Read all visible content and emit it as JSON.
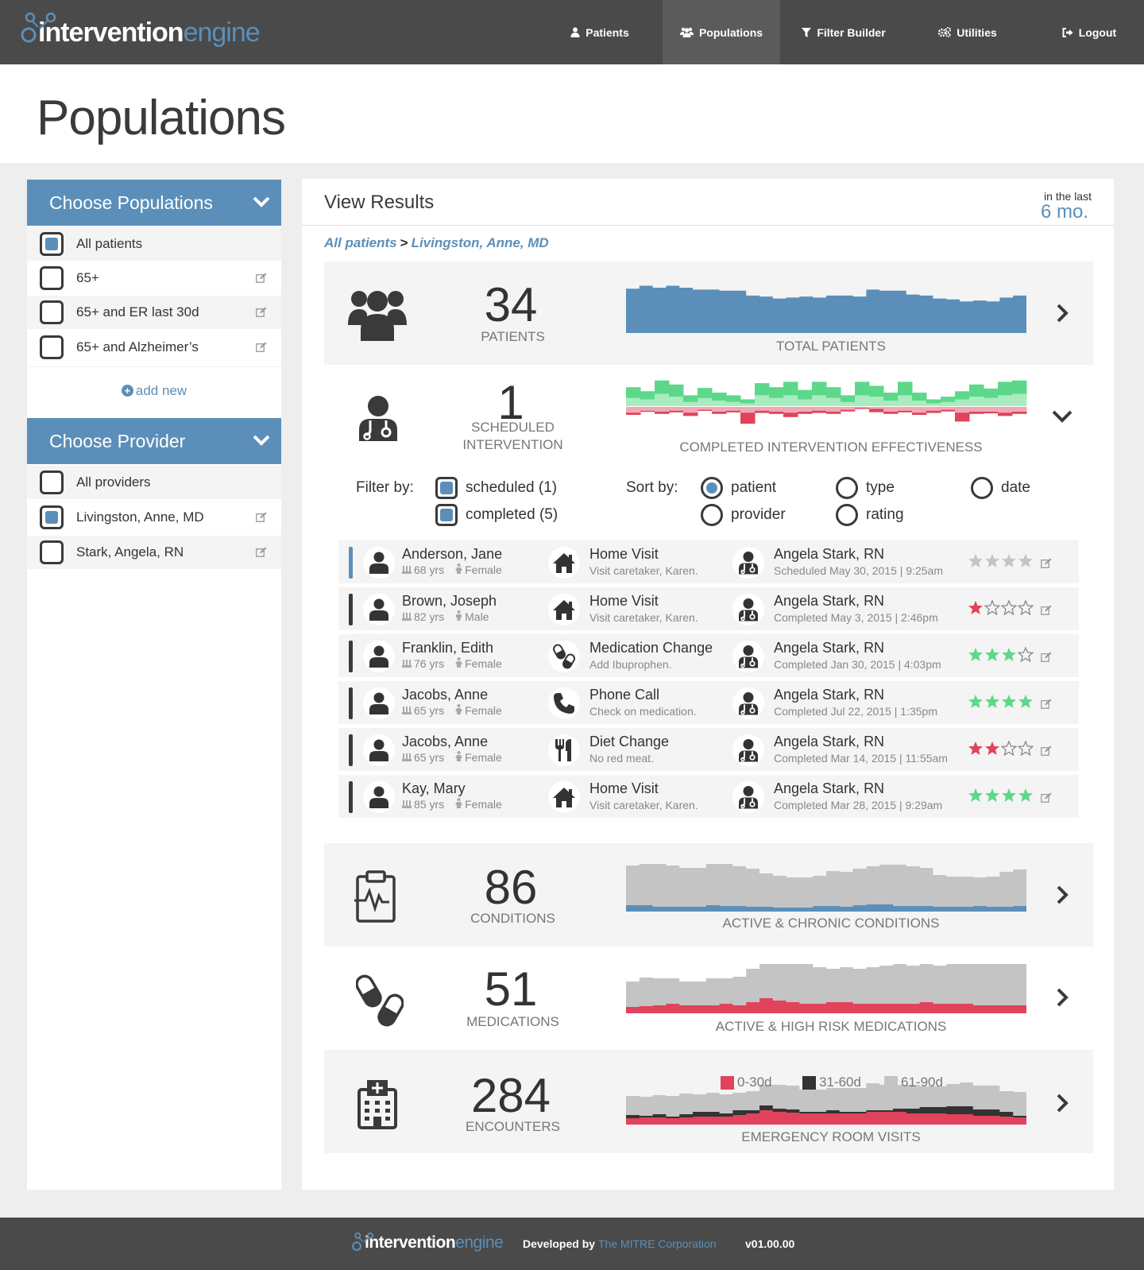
{
  "app": {
    "brand_primary": "intervention",
    "brand_secondary": "engine"
  },
  "colors": {
    "accent": "#5b8fb9",
    "nav_bg": "#4a4a4a",
    "positive": "#5dd88a",
    "positive_light": "#a8ecbf",
    "negative": "#e0435b",
    "negative_light": "#f0a9b4",
    "muted": "#c4c4c4",
    "dark_series": "#333333"
  },
  "nav": {
    "items": [
      {
        "label": "Patients",
        "icon": "user-icon"
      },
      {
        "label": "Populations",
        "icon": "users-icon",
        "active": true
      },
      {
        "label": "Filter Builder",
        "icon": "filter-icon"
      },
      {
        "label": "Utilities",
        "icon": "cogs-icon"
      },
      {
        "label": "Logout",
        "icon": "logout-icon"
      }
    ]
  },
  "page": {
    "title": "Populations"
  },
  "sidebar": {
    "populations": {
      "title": "Choose Populations",
      "items": [
        {
          "label": "All patients",
          "checked": true,
          "editable": false
        },
        {
          "label": "65+",
          "checked": false,
          "editable": true
        },
        {
          "label": "65+ and ER last 30d",
          "checked": false,
          "editable": true
        },
        {
          "label": "65+ and Alzheimer’s",
          "checked": false,
          "editable": true
        }
      ],
      "add_label": "add new"
    },
    "providers": {
      "title": "Choose Provider",
      "items": [
        {
          "label": "All providers",
          "checked": false,
          "editable": false
        },
        {
          "label": "Livingston, Anne, MD",
          "checked": true,
          "editable": true
        },
        {
          "label": "Stark, Angela, RN",
          "checked": false,
          "editable": true
        }
      ]
    }
  },
  "results": {
    "title": "View Results",
    "time_prefix": "in the last",
    "time_value": "6 mo.",
    "breadcrumb": [
      "All patients",
      "Livingston, Anne, MD"
    ],
    "breadcrumb_sep": ">"
  },
  "cards": {
    "patients": {
      "count": "34",
      "label": "PATIENTS",
      "chart_label": "TOTAL PATIENTS"
    },
    "interventions": {
      "count": "1",
      "label_line1": "SCHEDULED",
      "label_line2": "INTERVENTION",
      "chart_label": "COMPLETED INTERVENTION EFFECTIVENESS"
    },
    "conditions": {
      "count": "86",
      "label": "CONDITIONS",
      "chart_label": "ACTIVE & CHRONIC CONDITIONS"
    },
    "medications": {
      "count": "51",
      "label": "MEDICATIONS",
      "chart_label": "ACTIVE & HIGH RISK MEDICATIONS"
    },
    "encounters": {
      "count": "284",
      "label": "ENCOUNTERS",
      "chart_label": "EMERGENCY ROOM VISITS",
      "legend": [
        "0-30d",
        "31-60d",
        "61-90d"
      ]
    }
  },
  "filter": {
    "label": "Filter by:",
    "options": [
      {
        "label": "scheduled (1)",
        "checked": true
      },
      {
        "label": "completed (5)",
        "checked": true
      }
    ]
  },
  "sort": {
    "label": "Sort by:",
    "options": [
      {
        "label": "patient",
        "selected": true
      },
      {
        "label": "type",
        "selected": false
      },
      {
        "label": "date",
        "selected": false
      },
      {
        "label": "provider",
        "selected": false
      },
      {
        "label": "rating",
        "selected": false
      }
    ]
  },
  "interventions": [
    {
      "patient": "Anderson, Jane",
      "age": "68 yrs",
      "gender": "Female",
      "type": "Home Visit",
      "type_icon": "home-icon",
      "note": "Visit caretaker, Karen.",
      "provider": "Angela Stark, RN",
      "status": "Scheduled May 30, 2015 | 9:25am",
      "rating": 0,
      "rating_color": "#c4c4c4",
      "scheduled": true
    },
    {
      "patient": "Brown, Joseph",
      "age": "82 yrs",
      "gender": "Male",
      "type": "Home Visit",
      "type_icon": "home-icon",
      "note": "Visit caretaker, Karen.",
      "provider": "Angela Stark, RN",
      "status": "Completed May 3, 2015 | 2:46pm",
      "rating": 1,
      "rating_color": "#e0435b",
      "scheduled": false
    },
    {
      "patient": "Franklin, Edith",
      "age": "76 yrs",
      "gender": "Female",
      "type": "Medication Change",
      "type_icon": "pills-icon",
      "note": "Add Ibuprophen.",
      "provider": "Angela Stark, RN",
      "status": "Completed Jan 30, 2015 | 4:03pm",
      "rating": 3,
      "rating_color": "#5dd88a",
      "scheduled": false
    },
    {
      "patient": "Jacobs, Anne",
      "age": "65 yrs",
      "gender": "Female",
      "type": "Phone Call",
      "type_icon": "phone-icon",
      "note": "Check on medication.",
      "provider": "Angela Stark, RN",
      "status": "Completed Jul 22, 2015 | 1:35pm",
      "rating": 4,
      "rating_color": "#5dd88a",
      "scheduled": false
    },
    {
      "patient": "Jacobs, Anne",
      "age": "65 yrs",
      "gender": "Female",
      "type": "Diet Change",
      "type_icon": "utensils-icon",
      "note": "No red meat.",
      "provider": "Angela Stark, RN",
      "status": "Completed Mar 14, 2015 | 11:55am",
      "rating": 2,
      "rating_color": "#e0435b",
      "scheduled": false
    },
    {
      "patient": "Kay, Mary",
      "age": "85 yrs",
      "gender": "Female",
      "type": "Home Visit",
      "type_icon": "home-icon",
      "note": "Visit caretaker, Karen.",
      "provider": "Angela Stark, RN",
      "status": "Completed Mar 28, 2015 | 9:29am",
      "rating": 4,
      "rating_color": "#5dd88a",
      "scheduled": false
    }
  ],
  "footer": {
    "dev_prefix": "Developed by",
    "company": "The MITRE Corporation",
    "version": "v01.00.00"
  },
  "chart_data": [
    {
      "type": "area",
      "name": "patients",
      "values": [
        45,
        48,
        46,
        48,
        46,
        44,
        44,
        43,
        43,
        38,
        37,
        35,
        36,
        37,
        36,
        38,
        38,
        37,
        44,
        43,
        43,
        39,
        38,
        35,
        34,
        32,
        33,
        32,
        36,
        38
      ]
    },
    {
      "type": "bar",
      "name": "effectiveness",
      "positive": [
        [
          12,
          16
        ],
        [
          10,
          12
        ],
        [
          18,
          20
        ],
        [
          14,
          18
        ],
        [
          6,
          10
        ],
        [
          12,
          15
        ],
        [
          8,
          12
        ],
        [
          6,
          10
        ],
        [
          4,
          6
        ],
        [
          16,
          18
        ],
        [
          12,
          16
        ],
        [
          16,
          20
        ],
        [
          10,
          14
        ],
        [
          16,
          20
        ],
        [
          12,
          16
        ],
        [
          6,
          10
        ],
        [
          16,
          20
        ],
        [
          14,
          16
        ],
        [
          8,
          12
        ],
        [
          16,
          20
        ],
        [
          8,
          12
        ],
        [
          4,
          6
        ],
        [
          6,
          8
        ],
        [
          10,
          12
        ],
        [
          14,
          18
        ],
        [
          12,
          14
        ],
        [
          16,
          20
        ],
        [
          18,
          20
        ]
      ],
      "negative": [
        [
          12,
          4
        ],
        [
          8,
          2
        ],
        [
          10,
          4
        ],
        [
          8,
          3
        ],
        [
          12,
          6
        ],
        [
          6,
          2
        ],
        [
          10,
          4
        ],
        [
          8,
          3
        ],
        [
          12,
          20
        ],
        [
          8,
          4
        ],
        [
          10,
          4
        ],
        [
          12,
          8
        ],
        [
          10,
          4
        ],
        [
          8,
          4
        ],
        [
          10,
          4
        ],
        [
          6,
          3
        ],
        [
          2,
          2
        ],
        [
          4,
          6
        ],
        [
          10,
          4
        ],
        [
          8,
          3
        ],
        [
          12,
          4
        ],
        [
          8,
          4
        ],
        [
          6,
          3
        ],
        [
          12,
          16
        ],
        [
          10,
          4
        ],
        [
          10,
          3
        ],
        [
          12,
          6
        ],
        [
          10,
          4
        ]
      ]
    },
    {
      "type": "area",
      "name": "conditions",
      "series": [
        {
          "name": "active",
          "values": [
            8,
            8,
            6,
            6,
            6,
            6,
            8,
            7,
            7,
            6,
            6,
            5,
            5,
            5,
            7,
            7,
            6,
            8,
            9,
            9,
            7,
            7,
            7,
            6,
            6,
            6,
            7,
            6,
            6,
            7
          ]
        },
        {
          "name": "chronic",
          "values": [
            50,
            56,
            54,
            52,
            49,
            49,
            53,
            54,
            50,
            48,
            42,
            40,
            38,
            38,
            38,
            44,
            44,
            46,
            48,
            50,
            52,
            50,
            48,
            40,
            38,
            38,
            36,
            38,
            44,
            46
          ]
        }
      ]
    },
    {
      "type": "area",
      "name": "medications",
      "series": [
        {
          "name": "high risk",
          "values": [
            8,
            9,
            10,
            12,
            10,
            10,
            10,
            12,
            10,
            14,
            19,
            16,
            14,
            12,
            12,
            14,
            14,
            12,
            12,
            12,
            12,
            12,
            14,
            12,
            12,
            12,
            10,
            10,
            10,
            10
          ]
        },
        {
          "name": "active",
          "values": [
            32,
            36,
            34,
            32,
            30,
            30,
            34,
            32,
            36,
            42,
            46,
            50,
            50,
            50,
            46,
            42,
            44,
            44,
            46,
            48,
            50,
            48,
            48,
            48,
            52,
            54,
            54,
            52,
            52,
            54
          ]
        }
      ]
    },
    {
      "type": "area",
      "name": "er_visits",
      "series": [
        {
          "name": "0-30d",
          "values": [
            8,
            9,
            9,
            8,
            9,
            10,
            10,
            10,
            12,
            14,
            18,
            16,
            15,
            14,
            14,
            14,
            14,
            14,
            16,
            16,
            16,
            14,
            14,
            14,
            13,
            13,
            11,
            11,
            10,
            9
          ]
        },
        {
          "name": "31-60d",
          "values": [
            4,
            2,
            4,
            2,
            4,
            6,
            6,
            4,
            6,
            4,
            6,
            4,
            4,
            2,
            2,
            4,
            2,
            2,
            2,
            2,
            4,
            6,
            8,
            8,
            10,
            10,
            8,
            8,
            6,
            2
          ]
        },
        {
          "name": "61-90d",
          "values": [
            24,
            24,
            24,
            26,
            26,
            22,
            24,
            24,
            22,
            24,
            26,
            30,
            30,
            28,
            28,
            28,
            30,
            30,
            34,
            32,
            30,
            30,
            26,
            26,
            28,
            30,
            30,
            30,
            26,
            30
          ]
        }
      ]
    }
  ]
}
